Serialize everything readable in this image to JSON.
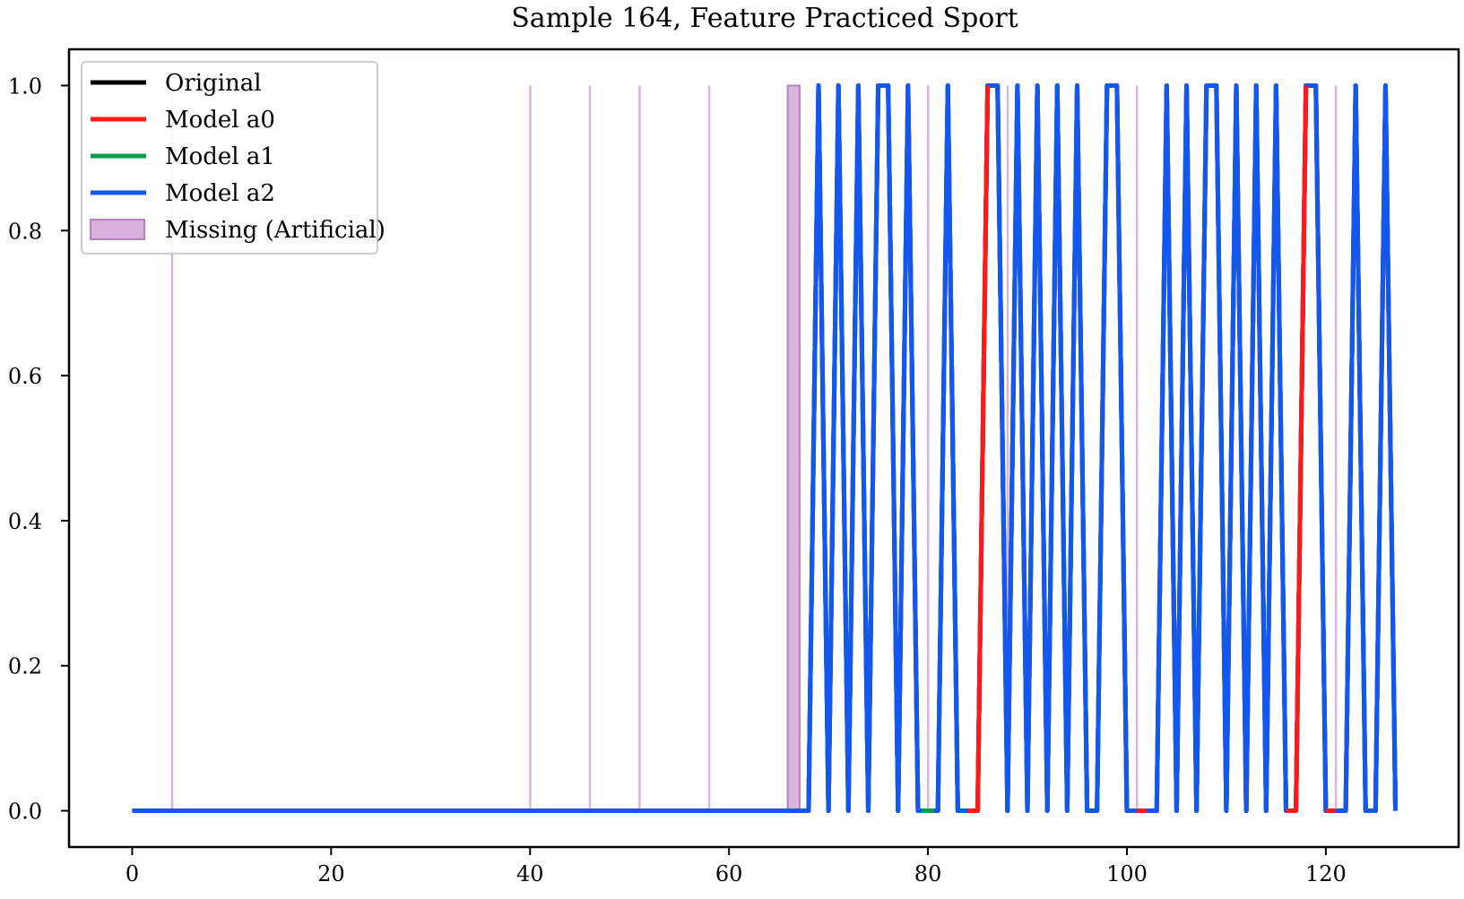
{
  "chart_data": {
    "type": "line",
    "title": "Sample 164, Feature Practiced Sport",
    "xlabel": "",
    "ylabel": "",
    "xlim": [
      -6.35,
      133.35
    ],
    "ylim": [
      -0.05,
      1.05
    ],
    "xticks": [
      0,
      20,
      40,
      60,
      80,
      100,
      120
    ],
    "yticks": [
      0.0,
      0.2,
      0.4,
      0.6,
      0.8,
      1.0
    ],
    "ytick_labels": [
      "0.0",
      "0.2",
      "0.4",
      "0.6",
      "0.8",
      "1.0"
    ],
    "grid": false,
    "legend_position": "top-left",
    "legend": [
      {
        "label": "Original",
        "color": "#000000",
        "kind": "line"
      },
      {
        "label": "Model a0",
        "color": "#ff1a1a",
        "kind": "line"
      },
      {
        "label": "Model a1",
        "color": "#0a9e4b",
        "kind": "line"
      },
      {
        "label": "Model a2",
        "color": "#1257f0",
        "kind": "line"
      },
      {
        "label": "Missing (Artificial)",
        "color": "#d9b0dc",
        "kind": "patch"
      }
    ],
    "missing_regions": [
      [
        3.9,
        4.1
      ],
      [
        39.9,
        40.1
      ],
      [
        45.9,
        46.1
      ],
      [
        50.9,
        51.1
      ],
      [
        57.9,
        58.1
      ],
      [
        65.9,
        67.1
      ],
      [
        79.9,
        80.1
      ],
      [
        87.9,
        88.1
      ],
      [
        100.9,
        101.1
      ],
      [
        120.9,
        121.1
      ]
    ],
    "series": [
      {
        "name": "Original",
        "color": "#000000",
        "x": [
          0,
          68,
          69,
          70,
          71,
          72,
          73,
          74,
          75,
          76,
          77,
          78,
          79,
          80,
          81,
          82,
          83,
          84,
          85,
          86,
          87,
          88,
          89,
          90,
          91,
          92,
          93,
          94,
          95,
          96,
          97,
          98,
          99,
          100,
          101,
          102,
          103,
          104,
          105,
          106,
          107,
          108,
          109,
          110,
          111,
          112,
          113,
          114,
          115,
          116,
          117,
          118,
          119,
          120,
          121,
          122,
          123,
          124,
          125,
          126,
          127
        ],
        "y": [
          0,
          0,
          1,
          0,
          1,
          0,
          1,
          0,
          1,
          1,
          0,
          1,
          0,
          0,
          0,
          1,
          0,
          0,
          0,
          1,
          1,
          0,
          1,
          0,
          1,
          0,
          1,
          0,
          1,
          0,
          0,
          1,
          1,
          0,
          0,
          0,
          0,
          1,
          0,
          1,
          0,
          1,
          1,
          0,
          1,
          0,
          1,
          0,
          1,
          0,
          0,
          1,
          1,
          0,
          0,
          0,
          1,
          0,
          0,
          1,
          0
        ]
      },
      {
        "name": "Model a0",
        "color": "#ff1a1a",
        "x": [
          0,
          68,
          69,
          70,
          71,
          72,
          73,
          74,
          75,
          76,
          77,
          78,
          79,
          80,
          81,
          82,
          83,
          84,
          85,
          86,
          87,
          88,
          89,
          90,
          91,
          92,
          93,
          94,
          95,
          96,
          97,
          98,
          99,
          100,
          101,
          102,
          103,
          104,
          105,
          106,
          107,
          108,
          109,
          110,
          111,
          112,
          113,
          114,
          115,
          116,
          117,
          118,
          119,
          120,
          121,
          122,
          123,
          124,
          125,
          126,
          127
        ],
        "y": [
          0,
          0,
          1,
          0,
          1,
          0,
          1,
          0,
          1,
          1,
          0,
          1,
          0,
          0,
          0,
          1,
          0,
          0,
          0,
          1,
          1,
          0,
          1,
          0,
          1,
          0,
          1,
          0,
          1,
          0,
          0,
          1,
          1,
          0,
          0,
          0,
          0,
          1,
          0,
          1,
          0,
          1,
          1,
          0,
          1,
          0,
          1,
          0,
          1,
          0,
          0,
          1,
          1,
          0,
          0,
          0,
          1,
          0,
          0,
          1,
          0
        ]
      },
      {
        "name": "Model a1",
        "color": "#0a9e4b",
        "x": [
          0,
          68,
          69,
          70,
          71,
          72,
          73,
          74,
          75,
          76,
          77,
          78,
          79,
          80,
          81,
          82,
          83,
          84,
          85,
          86,
          87,
          88,
          89,
          90,
          91,
          92,
          93,
          94,
          95,
          96,
          97,
          98,
          99,
          100,
          101,
          102,
          103,
          104,
          105,
          106,
          107,
          108,
          109,
          110,
          111,
          112,
          113,
          114,
          115,
          116,
          117,
          118,
          119,
          120,
          121,
          122,
          123,
          124,
          125,
          126,
          127
        ],
        "y": [
          0,
          0,
          1,
          0,
          1,
          0,
          1,
          0,
          1,
          1,
          0,
          1,
          0,
          0,
          0,
          1,
          0,
          0,
          0,
          1,
          1,
          0,
          1,
          0,
          1,
          0,
          1,
          0,
          1,
          0,
          0,
          1,
          1,
          0,
          0,
          0,
          0,
          1,
          0,
          1,
          0,
          1,
          1,
          0,
          1,
          0,
          1,
          0,
          1,
          0,
          0,
          1,
          1,
          0,
          0,
          0,
          1,
          0,
          0,
          1,
          0
        ]
      },
      {
        "name": "Model a2",
        "color": "#1257f0",
        "x": [
          0,
          68,
          69,
          70,
          71,
          72,
          73,
          74,
          75,
          76,
          77,
          78,
          79,
          80,
          81,
          82,
          83,
          84,
          85,
          86,
          87,
          88,
          89,
          90,
          91,
          92,
          93,
          94,
          95,
          96,
          97,
          98,
          99,
          100,
          101,
          102,
          103,
          104,
          105,
          106,
          107,
          108,
          109,
          110,
          111,
          112,
          113,
          114,
          115,
          116,
          117,
          118,
          119,
          120,
          121,
          122,
          123,
          124,
          125,
          126,
          127
        ],
        "y": [
          0,
          0,
          1,
          0,
          1,
          0,
          1,
          0,
          1,
          1,
          0,
          1,
          0,
          0,
          0,
          1,
          0,
          0,
          0,
          1,
          1,
          0,
          1,
          0,
          1,
          0,
          1,
          0,
          1,
          0,
          0,
          1,
          1,
          0,
          0,
          0,
          0,
          1,
          0,
          1,
          0,
          1,
          1,
          0,
          1,
          0,
          1,
          0,
          1,
          0,
          0,
          1,
          1,
          0,
          0,
          0,
          1,
          0,
          0,
          1,
          0
        ]
      }
    ],
    "overlay_segments": [
      {
        "series": "Model a0",
        "color": "#ff1a1a",
        "x": [
          84,
          85,
          86
        ],
        "y": [
          0,
          0,
          1
        ]
      },
      {
        "series": "Model a0",
        "color": "#ff1a1a",
        "x": [
          101,
          102
        ],
        "y": [
          0,
          0
        ]
      },
      {
        "series": "Model a0",
        "color": "#ff1a1a",
        "x": [
          116,
          117,
          118
        ],
        "y": [
          0,
          0,
          1
        ]
      },
      {
        "series": "Model a0",
        "color": "#ff1a1a",
        "x": [
          120,
          121
        ],
        "y": [
          0,
          0
        ]
      },
      {
        "series": "Model a1",
        "color": "#0a9e4b",
        "x": [
          79.4,
          80.6
        ],
        "y": [
          0,
          0
        ]
      }
    ]
  }
}
